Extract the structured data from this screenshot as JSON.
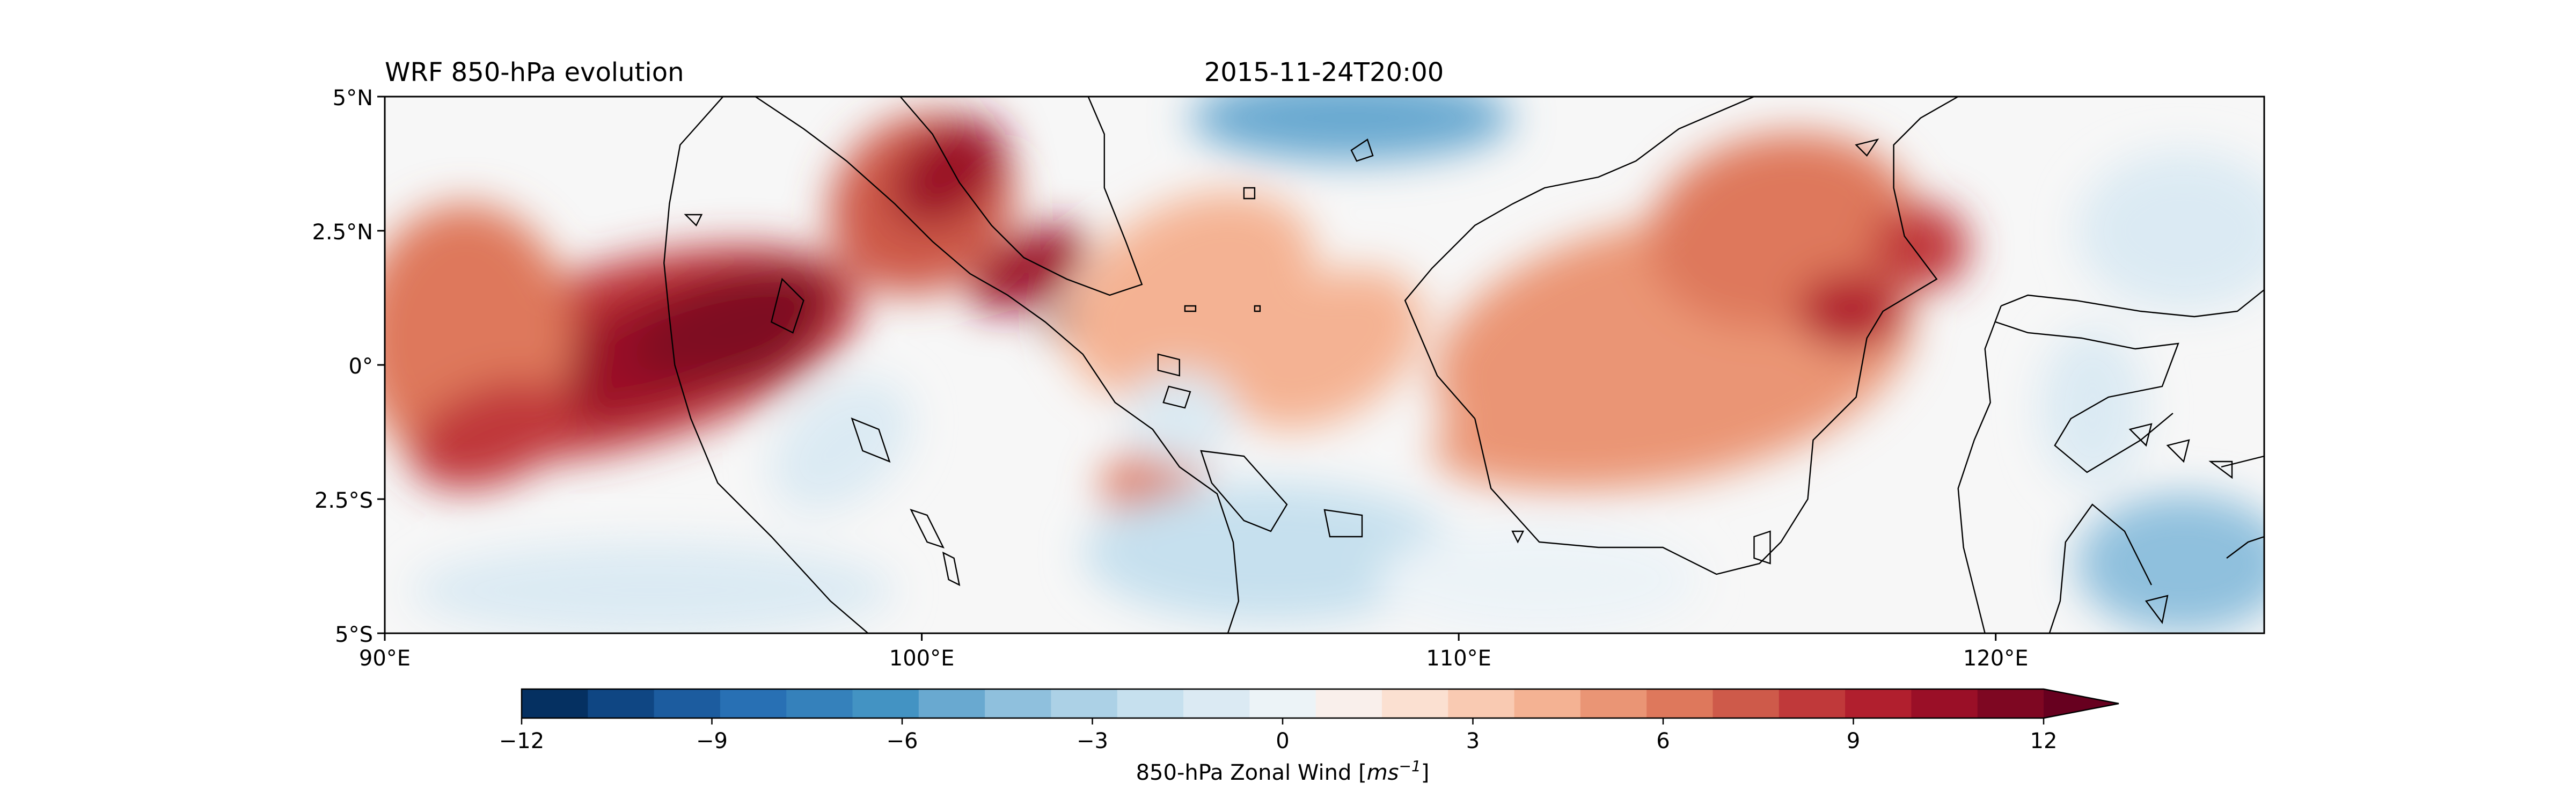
{
  "title_left": "WRF 850-hPa evolution",
  "title_center": "2015-11-24T20:00",
  "map": {
    "extent_lon": [
      90,
      125
    ],
    "extent_lat": [
      -5,
      5
    ],
    "lat_ticks": [
      {
        "value": 5,
        "label": "5°N"
      },
      {
        "value": 2.5,
        "label": "2.5°N"
      },
      {
        "value": 0,
        "label": "0°"
      },
      {
        "value": -2.5,
        "label": "2.5°S"
      },
      {
        "value": -5,
        "label": "5°S"
      }
    ],
    "lon_ticks": [
      {
        "value": 90,
        "label": "90°E"
      },
      {
        "value": 100,
        "label": "100°E"
      },
      {
        "value": 110,
        "label": "110°E"
      },
      {
        "value": 120,
        "label": "120°E"
      }
    ],
    "field_background": "#f7f7f7",
    "coastline_color": "#000000"
  },
  "colorbar": {
    "label_text": "850-hPa Zonal Wind [",
    "label_unit_base": "ms",
    "label_unit_exp": "−1",
    "label_close": "]",
    "min": -12,
    "max": 12,
    "step": 1,
    "extend": "max",
    "ticks": [
      {
        "value": -12,
        "label": "−12"
      },
      {
        "value": -9,
        "label": "−9"
      },
      {
        "value": -6,
        "label": "−6"
      },
      {
        "value": -3,
        "label": "−3"
      },
      {
        "value": 0,
        "label": "0"
      },
      {
        "value": 3,
        "label": "3"
      },
      {
        "value": 6,
        "label": "6"
      },
      {
        "value": 9,
        "label": "9"
      },
      {
        "value": 12,
        "label": "12"
      }
    ],
    "colors": [
      "#053061",
      "#0f4683",
      "#1c5c9f",
      "#2870b4",
      "#3581bb",
      "#4393c3",
      "#69a9d0",
      "#8fc0dd",
      "#acd1e6",
      "#c6e0ee",
      "#dbeaf3",
      "#ecf3f7",
      "#f9efeb",
      "#fbe0d1",
      "#f9cab2",
      "#f4b293",
      "#ea9575",
      "#de785c",
      "#ce5a4a",
      "#c0393a",
      "#b11f2e",
      "#9a0f27",
      "#7e0722"
    ],
    "extend_color": "#67001f"
  },
  "wind_blobs": [
    {
      "lon": 94.5,
      "lat": 0.2,
      "rx": 4.5,
      "ry": 1.7,
      "rot": -15,
      "v": 7
    },
    {
      "lon": 95.5,
      "lat": 0.4,
      "rx": 3.0,
      "ry": 1.1,
      "rot": -20,
      "v": 9
    },
    {
      "lon": 96.5,
      "lat": 0.8,
      "rx": 2.0,
      "ry": 0.8,
      "rot": -20,
      "v": 11
    },
    {
      "lon": 97.0,
      "lat": 0.4,
      "rx": 1.2,
      "ry": 0.6,
      "rot": -25,
      "v": 12
    },
    {
      "lon": 91.5,
      "lat": 0.5,
      "rx": 2.0,
      "ry": 2.5,
      "rot": 0,
      "v": 5
    },
    {
      "lon": 92.0,
      "lat": -1.3,
      "rx": 1.6,
      "ry": 0.9,
      "rot": -20,
      "v": 7
    },
    {
      "lon": 100.0,
      "lat": 3.0,
      "rx": 1.8,
      "ry": 1.6,
      "rot": -40,
      "v": 6
    },
    {
      "lon": 100.5,
      "lat": 3.6,
      "rx": 1.2,
      "ry": 0.8,
      "rot": -40,
      "v": 9
    },
    {
      "lon": 102.0,
      "lat": 1.8,
      "rx": 1.2,
      "ry": 0.6,
      "rot": -30,
      "v": 9
    },
    {
      "lon": 102.9,
      "lat": 1.0,
      "rx": 0.7,
      "ry": 0.35,
      "rot": -30,
      "v": 12
    },
    {
      "lon": 105.0,
      "lat": 1.3,
      "rx": 2.5,
      "ry": 1.7,
      "rot": -30,
      "v": 3
    },
    {
      "lon": 107.5,
      "lat": 0.3,
      "rx": 2.0,
      "ry": 1.3,
      "rot": -30,
      "v": 3
    },
    {
      "lon": 104.3,
      "lat": -2.1,
      "rx": 1.0,
      "ry": 0.6,
      "rot": -20,
      "v": 5
    },
    {
      "lon": 114.0,
      "lat": 0.3,
      "rx": 4.5,
      "ry": 2.4,
      "rot": -10,
      "v": 4
    },
    {
      "lon": 116.0,
      "lat": 2.5,
      "rx": 2.5,
      "ry": 1.8,
      "rot": -10,
      "v": 5
    },
    {
      "lon": 117.3,
      "lat": 1.0,
      "rx": 1.0,
      "ry": 0.7,
      "rot": 0,
      "v": 8
    },
    {
      "lon": 118.6,
      "lat": 2.2,
      "rx": 0.9,
      "ry": 0.8,
      "rot": 0,
      "v": 7
    },
    {
      "lon": 113.0,
      "lat": -1.3,
      "rx": 3.5,
      "ry": 1.0,
      "rot": -5,
      "v": 4
    },
    {
      "lon": 108.0,
      "lat": 4.6,
      "rx": 3.0,
      "ry": 0.8,
      "rot": 0,
      "v": -6
    },
    {
      "lon": 106.5,
      "lat": -3.5,
      "rx": 3.5,
      "ry": 1.3,
      "rot": 0,
      "v": -3
    },
    {
      "lon": 95.0,
      "lat": -4.2,
      "rx": 4.5,
      "ry": 0.9,
      "rot": 0,
      "v": -2
    },
    {
      "lon": 123.5,
      "lat": -3.7,
      "rx": 2.0,
      "ry": 1.3,
      "rot": 0,
      "v": -5
    },
    {
      "lon": 123.5,
      "lat": 2.5,
      "rx": 2.0,
      "ry": 1.5,
      "rot": 0,
      "v": -2
    },
    {
      "lon": 121.8,
      "lat": -0.8,
      "rx": 1.0,
      "ry": 1.5,
      "rot": 0,
      "v": -2
    },
    {
      "lon": 104.8,
      "lat": -1.0,
      "rx": 1.0,
      "ry": 0.9,
      "rot": 0,
      "v": -2
    },
    {
      "lon": 111.5,
      "lat": -4.0,
      "rx": 3.0,
      "ry": 1.0,
      "rot": 0,
      "v": -1
    },
    {
      "lon": 98.5,
      "lat": -1.5,
      "rx": 1.5,
      "ry": 1.0,
      "rot": -40,
      "v": -2
    }
  ]
}
